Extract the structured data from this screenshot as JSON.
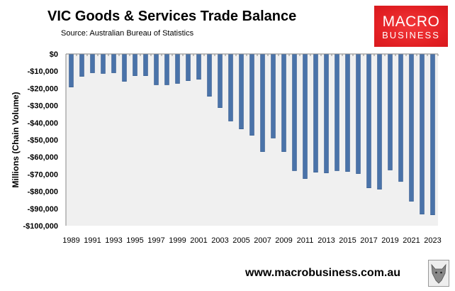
{
  "header": {
    "title": "VIC Goods & Services Trade Balance",
    "source": "Source:  Australian Bureau of Statistics"
  },
  "logo": {
    "line1": "MACRO",
    "line2": "BUSINESS"
  },
  "footer": {
    "url": "www.macrobusiness.com.au"
  },
  "colors": {
    "bar": "#4a73a9",
    "plot_bg": "#f0f0f0",
    "logo": "#e21f23"
  },
  "chart_data": {
    "type": "bar",
    "title": "VIC Goods & Services Trade Balance",
    "xlabel": "",
    "ylabel": "Millions (Chain Volume)",
    "ylim": [
      -100000,
      0
    ],
    "yticks": [
      0,
      -10000,
      -20000,
      -30000,
      -40000,
      -50000,
      -60000,
      -70000,
      -80000,
      -90000,
      -100000
    ],
    "ytick_labels": [
      "$0",
      "-$10,000",
      "-$20,000",
      "-$30,000",
      "-$40,000",
      "-$50,000",
      "-$60,000",
      "-$70,000",
      "-$80,000",
      "-$90,000",
      "-$100,000"
    ],
    "categories": [
      "1989",
      "1990",
      "1991",
      "1992",
      "1993",
      "1994",
      "1995",
      "1996",
      "1997",
      "1998",
      "1999",
      "2000",
      "2001",
      "2002",
      "2003",
      "2004",
      "2005",
      "2006",
      "2007",
      "2008",
      "2009",
      "2010",
      "2011",
      "2012",
      "2013",
      "2014",
      "2015",
      "2016",
      "2017",
      "2018",
      "2019",
      "2020",
      "2021",
      "2022",
      "2023"
    ],
    "xtick_labels": [
      "1989",
      "1991",
      "1993",
      "1995",
      "1997",
      "1999",
      "2001",
      "2003",
      "2005",
      "2007",
      "2009",
      "2011",
      "2013",
      "2015",
      "2017",
      "2019",
      "2021",
      "2023"
    ],
    "values": [
      -19300,
      -13100,
      -11000,
      -11400,
      -11000,
      -16000,
      -12700,
      -12700,
      -18000,
      -18000,
      -17200,
      -15600,
      -14800,
      -24700,
      -31300,
      -39100,
      -43700,
      -47400,
      -56900,
      -49000,
      -56900,
      -68000,
      -72600,
      -68900,
      -69300,
      -68000,
      -68500,
      -69700,
      -78000,
      -78800,
      -67600,
      -74300,
      -85800,
      -93300,
      -93700
    ],
    "grid": false,
    "legend": "none"
  }
}
